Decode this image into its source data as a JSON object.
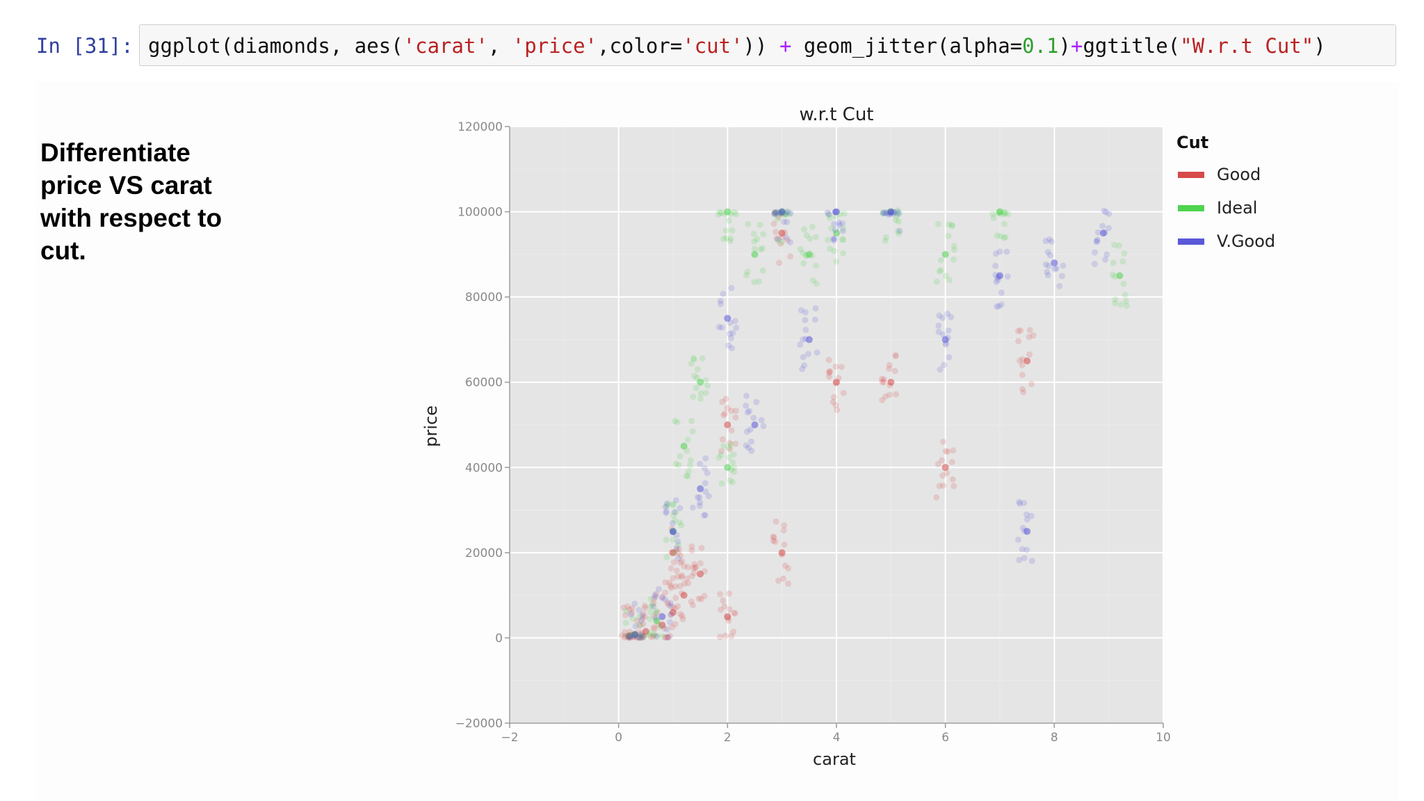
{
  "cell": {
    "prompt": "In [31]:",
    "code_tokens": [
      {
        "text": "ggplot(diamonds, aes(",
        "kind": "plain"
      },
      {
        "text": "'carat'",
        "kind": "str"
      },
      {
        "text": ", ",
        "kind": "plain"
      },
      {
        "text": "'price'",
        "kind": "str"
      },
      {
        "text": ",color=",
        "kind": "plain"
      },
      {
        "text": "'cut'",
        "kind": "str"
      },
      {
        "text": ")) ",
        "kind": "plain"
      },
      {
        "text": "+",
        "kind": "op"
      },
      {
        "text": " geom_jitter(alpha=",
        "kind": "plain"
      },
      {
        "text": "0.1",
        "kind": "num"
      },
      {
        "text": ")",
        "kind": "plain"
      },
      {
        "text": "+",
        "kind": "op"
      },
      {
        "text": "ggtitle(",
        "kind": "plain"
      },
      {
        "text": "\"W.r.t Cut\"",
        "kind": "str"
      },
      {
        "text": ")",
        "kind": "plain"
      }
    ]
  },
  "note": {
    "lines": [
      "Differentiate",
      "price VS carat",
      "with respect to",
      "cut."
    ]
  },
  "chart_data": {
    "type": "scatter",
    "title": "w.r.t Cut",
    "xlabel": "carat",
    "ylabel": "price",
    "xlim": [
      -2,
      10
    ],
    "ylim": [
      -20000,
      120000
    ],
    "xticks": [
      -2,
      0,
      2,
      4,
      6,
      8,
      10
    ],
    "xtick_labels": [
      "−2",
      "0",
      "2",
      "4",
      "6",
      "8",
      "10"
    ],
    "yticks": [
      -20000,
      0,
      20000,
      40000,
      60000,
      80000,
      100000,
      120000
    ],
    "ytick_labels": [
      "−20000",
      "0",
      "20000",
      "40000",
      "60000",
      "80000",
      "100000",
      "120000"
    ],
    "grid": true,
    "legend_position": "right",
    "legend_title": "Cut",
    "series": [
      {
        "name": "Good",
        "color": "#d64a4a",
        "values": [
          [
            0.2,
            500
          ],
          [
            0.3,
            700
          ],
          [
            0.5,
            1500
          ],
          [
            0.8,
            3000
          ],
          [
            1.0,
            6000
          ],
          [
            1.0,
            20000
          ],
          [
            1.2,
            10000
          ],
          [
            1.5,
            15000
          ],
          [
            2.0,
            50000
          ],
          [
            2.0,
            5000
          ],
          [
            3.0,
            95000
          ],
          [
            3.0,
            20000
          ],
          [
            4.0,
            60000
          ],
          [
            5.0,
            60000
          ],
          [
            6.0,
            40000
          ],
          [
            7.5,
            65000
          ]
        ]
      },
      {
        "name": "Ideal",
        "color": "#4fd44f",
        "values": [
          [
            0.3,
            800
          ],
          [
            0.7,
            4000
          ],
          [
            1.0,
            25000
          ],
          [
            1.2,
            45000
          ],
          [
            1.5,
            60000
          ],
          [
            2.0,
            100000
          ],
          [
            2.0,
            40000
          ],
          [
            2.5,
            90000
          ],
          [
            3.0,
            100000
          ],
          [
            3.5,
            90000
          ],
          [
            4.0,
            95000
          ],
          [
            5.0,
            100000
          ],
          [
            6.0,
            90000
          ],
          [
            7.0,
            100000
          ],
          [
            9.2,
            85000
          ]
        ]
      },
      {
        "name": "V.Good",
        "color": "#5a58d8",
        "values": [
          [
            0.3,
            800
          ],
          [
            0.8,
            5000
          ],
          [
            1.0,
            25000
          ],
          [
            1.5,
            35000
          ],
          [
            2.0,
            75000
          ],
          [
            2.5,
            50000
          ],
          [
            3.0,
            100000
          ],
          [
            3.5,
            70000
          ],
          [
            4.0,
            100000
          ],
          [
            5.0,
            100000
          ],
          [
            6.0,
            70000
          ],
          [
            7.0,
            85000
          ],
          [
            8.0,
            88000
          ],
          [
            8.9,
            95000
          ],
          [
            7.5,
            25000
          ]
        ]
      }
    ]
  }
}
